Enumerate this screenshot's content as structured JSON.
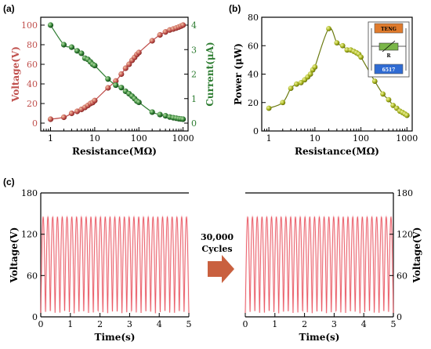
{
  "chart_data": [
    {
      "panel": "(a)",
      "type": "scatter",
      "xlabel": "Resistance(MΩ)",
      "ylabel": "Voltage(V)",
      "y2label": "Current(μA)",
      "xscale": "log",
      "xlim": [
        0.6,
        1300
      ],
      "ylim": [
        -8,
        108
      ],
      "y2lim": [
        -0.32,
        4.32
      ],
      "xticks": [
        1,
        10,
        100,
        1000
      ],
      "xtick_labels": [
        "1",
        "10",
        "100",
        "1000"
      ],
      "yticks": [
        0,
        20,
        40,
        60,
        80,
        100
      ],
      "y2ticks": [
        0,
        1,
        2,
        3,
        4
      ],
      "series": [
        {
          "name": "Voltage",
          "axis": "left",
          "color": "#c0504d",
          "x": [
            1,
            2,
            3,
            4,
            5,
            6,
            7,
            8,
            9,
            10,
            20,
            30,
            40,
            50,
            60,
            70,
            80,
            90,
            100,
            200,
            300,
            400,
            500,
            600,
            700,
            800,
            900,
            1000
          ],
          "y": [
            4,
            6,
            10,
            12,
            14,
            16,
            18,
            20,
            21,
            23,
            36,
            43,
            50,
            56,
            60,
            64,
            67,
            70,
            72,
            84,
            90,
            93,
            95,
            96,
            97,
            98,
            99,
            100
          ]
        },
        {
          "name": "Current",
          "axis": "right",
          "color": "#2e7d32",
          "x": [
            1,
            2,
            3,
            4,
            5,
            6,
            7,
            8,
            9,
            10,
            20,
            30,
            40,
            50,
            60,
            70,
            80,
            90,
            100,
            200,
            300,
            400,
            500,
            600,
            700,
            800,
            900,
            1000
          ],
          "y": [
            4.0,
            3.2,
            3.1,
            2.95,
            2.85,
            2.65,
            2.6,
            2.5,
            2.4,
            2.35,
            1.8,
            1.55,
            1.45,
            1.3,
            1.2,
            1.1,
            1.0,
            0.9,
            0.85,
            0.45,
            0.35,
            0.3,
            0.25,
            0.22,
            0.2,
            0.18,
            0.17,
            0.16
          ]
        }
      ]
    },
    {
      "panel": "(b)",
      "type": "scatter",
      "xlabel": "Resistance(MΩ)",
      "ylabel": "Power (μW)",
      "xscale": "log",
      "xlim": [
        0.7,
        1300
      ],
      "ylim": [
        0,
        80
      ],
      "xticks": [
        1,
        10,
        100,
        1000
      ],
      "xtick_labels": [
        "1",
        "10",
        "100",
        "1000"
      ],
      "yticks": [
        0,
        20,
        40,
        60,
        80
      ],
      "series": [
        {
          "name": "Power",
          "color": "#a3b11b",
          "x": [
            1,
            2,
            3,
            4,
            5,
            6,
            7,
            8,
            9,
            10,
            20,
            30,
            40,
            50,
            60,
            70,
            80,
            90,
            100,
            200,
            300,
            400,
            500,
            600,
            700,
            800,
            900,
            1000
          ],
          "y": [
            16,
            20,
            30,
            33,
            34,
            36,
            38,
            40,
            43,
            45,
            72,
            62,
            60,
            57,
            57,
            56,
            55,
            54,
            52,
            35,
            26,
            22,
            18,
            16,
            14,
            13,
            12,
            11
          ]
        }
      ],
      "inset_labels": [
        "TENG",
        "R",
        "6517"
      ]
    },
    {
      "panel": "(c)",
      "type": "line",
      "xlabel": "Time(s)",
      "ylabel": "Voltage(V)",
      "xlim": [
        0,
        5
      ],
      "ylim": [
        0,
        180
      ],
      "xticks": [
        0,
        1,
        2,
        3,
        4,
        5
      ],
      "yticks": [
        0,
        60,
        120,
        180
      ],
      "cycles": 31,
      "peak": 145,
      "floor": 5,
      "annotation": {
        "count": "30,000",
        "word": "Cycles"
      }
    }
  ]
}
